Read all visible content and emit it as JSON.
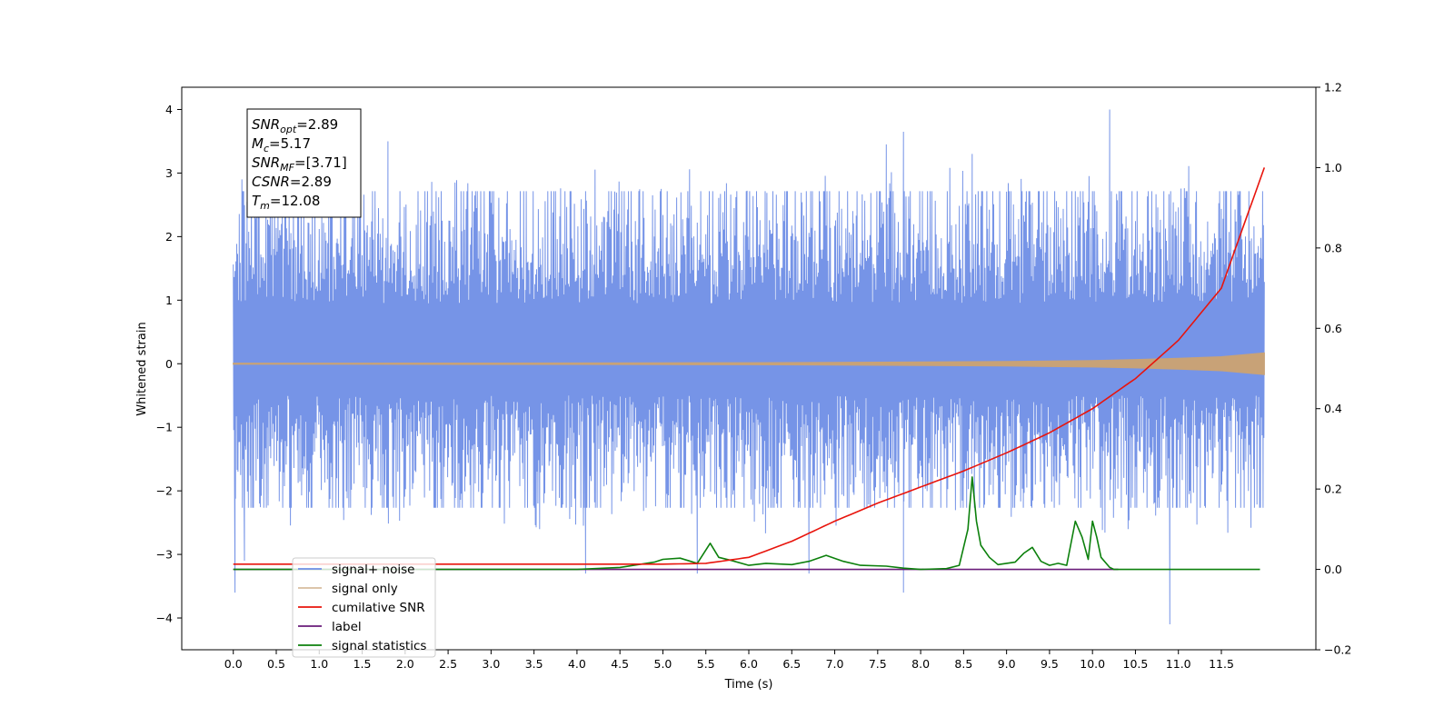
{
  "chart_data": {
    "type": "line",
    "title": "",
    "xlabel": "Time (s)",
    "ylabel": "Whitened strain",
    "xlim": [
      -0.6,
      12.6
    ],
    "ylim": [
      -4.5,
      4.35
    ],
    "y2lim": [
      -0.2,
      1.2
    ],
    "x_ticks": [
      "0.0",
      "0.5",
      "1.0",
      "1.5",
      "2.0",
      "2.5",
      "3.0",
      "3.5",
      "4.0",
      "4.5",
      "5.0",
      "5.5",
      "6.0",
      "6.5",
      "7.0",
      "7.5",
      "8.0",
      "8.5",
      "9.0",
      "9.5",
      "10.0",
      "10.5",
      "11.0",
      "11.5"
    ],
    "y_ticks": [
      "4",
      "3",
      "2",
      "1",
      "0",
      "−1",
      "−2",
      "−3",
      "−4"
    ],
    "y2_ticks": [
      "1.2",
      "1.0",
      "0.8",
      "0.6",
      "0.4",
      "0.2",
      "0.0",
      "−0.2"
    ],
    "info_box": [
      {
        "sym": "SNR",
        "sub": "opt",
        "val": "=2.89"
      },
      {
        "sym": "M",
        "sub": "c",
        "val": "=5.17"
      },
      {
        "sym": "SNR",
        "sub": "MF",
        "val": "=[3.71]"
      },
      {
        "sym": "CSNR",
        "sub": "",
        "val": "=2.89"
      },
      {
        "sym": "T",
        "sub": "m",
        "val": "=12.08"
      }
    ],
    "legend": {
      "placement": "lower-left",
      "entries": [
        "signal+ noise",
        "signal only",
        "cumilative SNR",
        "label",
        "signal statistics"
      ]
    },
    "series": [
      {
        "name": "signal+ noise",
        "axis": "left",
        "color": "#6f8ee6",
        "kind": "noise",
        "x_range": [
          0.0,
          12.0
        ],
        "typical_range": [
          -1.85,
          2.3
        ],
        "spikes": [
          [
            0.02,
            -3.6
          ],
          [
            0.1,
            2.9
          ],
          [
            0.13,
            -3.1
          ],
          [
            1.8,
            3.5
          ],
          [
            4.1,
            -3.3
          ],
          [
            5.4,
            -3.3
          ],
          [
            6.7,
            -3.3
          ],
          [
            7.6,
            3.45
          ],
          [
            7.8,
            3.65
          ],
          [
            7.8,
            -3.6
          ],
          [
            8.6,
            3.3
          ],
          [
            10.2,
            4.0
          ],
          [
            10.9,
            -4.1
          ]
        ]
      },
      {
        "name": "signal only",
        "axis": "left",
        "color": "#c8a277",
        "x": [
          0,
          1,
          2,
          3,
          4,
          5,
          6,
          7,
          8,
          9,
          10,
          10.5,
          11,
          11.5,
          12
        ],
        "amplitude": [
          0.008,
          0.008,
          0.009,
          0.01,
          0.011,
          0.013,
          0.015,
          0.02,
          0.026,
          0.035,
          0.05,
          0.065,
          0.085,
          0.11,
          0.17
        ]
      },
      {
        "name": "cumilative SNR",
        "axis": "right",
        "color": "#e8140c",
        "x": [
          0,
          5.0,
          5.5,
          6.0,
          6.5,
          7.0,
          7.5,
          8.0,
          8.5,
          9.0,
          9.5,
          10.0,
          10.5,
          11.0,
          11.5,
          12.0
        ],
        "y": [
          0.013,
          0.013,
          0.015,
          0.03,
          0.07,
          0.12,
          0.165,
          0.205,
          0.245,
          0.29,
          0.34,
          0.4,
          0.475,
          0.57,
          0.7,
          1.0
        ]
      },
      {
        "name": "label",
        "axis": "right",
        "color": "#6a1b7a",
        "x": [
          0,
          10.3
        ],
        "y": [
          0.0,
          0.0
        ]
      },
      {
        "name": "signal statistics",
        "axis": "right",
        "color": "#0c800c",
        "x": [
          0,
          4.0,
          4.5,
          4.9,
          5.0,
          5.2,
          5.4,
          5.55,
          5.65,
          5.8,
          6.0,
          6.2,
          6.5,
          6.7,
          6.9,
          7.1,
          7.3,
          7.6,
          7.8,
          8.0,
          8.3,
          8.45,
          8.55,
          8.6,
          8.65,
          8.7,
          8.8,
          8.9,
          9.0,
          9.1,
          9.2,
          9.3,
          9.4,
          9.5,
          9.6,
          9.7,
          9.8,
          9.88,
          9.95,
          10.0,
          10.05,
          10.1,
          10.2,
          10.25,
          10.35,
          11.0,
          11.5,
          11.95
        ],
        "y": [
          0.0,
          0.0,
          0.005,
          0.018,
          0.025,
          0.028,
          0.015,
          0.065,
          0.03,
          0.022,
          0.01,
          0.015,
          0.012,
          0.02,
          0.035,
          0.02,
          0.01,
          0.008,
          0.003,
          0.0,
          0.002,
          0.01,
          0.1,
          0.23,
          0.12,
          0.06,
          0.03,
          0.012,
          0.015,
          0.018,
          0.04,
          0.055,
          0.02,
          0.01,
          0.015,
          0.01,
          0.12,
          0.08,
          0.025,
          0.12,
          0.08,
          0.03,
          0.005,
          0.0,
          0.0,
          0.0,
          0.0,
          0.0
        ]
      }
    ]
  }
}
